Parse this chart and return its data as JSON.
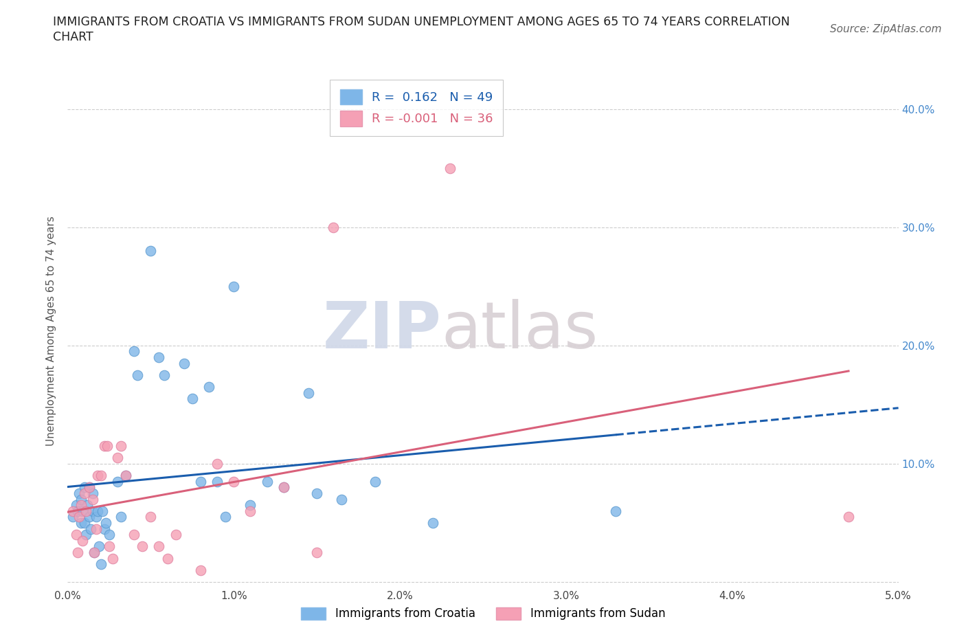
{
  "title_line1": "IMMIGRANTS FROM CROATIA VS IMMIGRANTS FROM SUDAN UNEMPLOYMENT AMONG AGES 65 TO 74 YEARS CORRELATION",
  "title_line2": "CHART",
  "source": "Source: ZipAtlas.com",
  "ylabel": "Unemployment Among Ages 65 to 74 years",
  "xlim": [
    0.0,
    0.05
  ],
  "ylim": [
    -0.005,
    0.43
  ],
  "xticks": [
    0.0,
    0.01,
    0.02,
    0.03,
    0.04,
    0.05
  ],
  "xticklabels": [
    "0.0%",
    "1.0%",
    "2.0%",
    "3.0%",
    "4.0%",
    "5.0%"
  ],
  "yticks": [
    0.0,
    0.1,
    0.2,
    0.3,
    0.4
  ],
  "right_yticklabels": [
    "",
    "10.0%",
    "20.0%",
    "30.0%",
    "40.0%"
  ],
  "croatia_color": "#7EB6E8",
  "sudan_color": "#F5A0B5",
  "croatia_R": 0.162,
  "croatia_N": 49,
  "sudan_R": -0.001,
  "sudan_N": 36,
  "croatia_line_color": "#1A5DAD",
  "sudan_line_color": "#D9607A",
  "watermark_zip": "ZIP",
  "watermark_atlas": "atlas",
  "background_color": "#ffffff",
  "grid_color": "#cccccc",
  "croatia_x": [
    0.0003,
    0.0005,
    0.0006,
    0.0007,
    0.0008,
    0.0008,
    0.0009,
    0.001,
    0.001,
    0.0011,
    0.0012,
    0.0013,
    0.0013,
    0.0014,
    0.0015,
    0.0015,
    0.0016,
    0.0017,
    0.0018,
    0.0019,
    0.002,
    0.0021,
    0.0022,
    0.0023,
    0.0025,
    0.003,
    0.0032,
    0.0035,
    0.004,
    0.0042,
    0.005,
    0.0055,
    0.0058,
    0.007,
    0.0075,
    0.008,
    0.0085,
    0.009,
    0.0095,
    0.01,
    0.011,
    0.012,
    0.013,
    0.0145,
    0.015,
    0.0165,
    0.0185,
    0.022,
    0.033
  ],
  "croatia_y": [
    0.055,
    0.065,
    0.06,
    0.075,
    0.07,
    0.05,
    0.06,
    0.08,
    0.05,
    0.04,
    0.065,
    0.08,
    0.055,
    0.045,
    0.075,
    0.06,
    0.025,
    0.055,
    0.06,
    0.03,
    0.015,
    0.06,
    0.045,
    0.05,
    0.04,
    0.085,
    0.055,
    0.09,
    0.195,
    0.175,
    0.28,
    0.19,
    0.175,
    0.185,
    0.155,
    0.085,
    0.165,
    0.085,
    0.055,
    0.25,
    0.065,
    0.085,
    0.08,
    0.16,
    0.075,
    0.07,
    0.085,
    0.05,
    0.06
  ],
  "sudan_x": [
    0.0003,
    0.0005,
    0.0006,
    0.0007,
    0.0008,
    0.0009,
    0.001,
    0.0011,
    0.0013,
    0.0015,
    0.0016,
    0.0017,
    0.0018,
    0.002,
    0.0022,
    0.0024,
    0.0025,
    0.0027,
    0.003,
    0.0032,
    0.0035,
    0.004,
    0.0045,
    0.005,
    0.0055,
    0.006,
    0.0065,
    0.008,
    0.009,
    0.01,
    0.011,
    0.013,
    0.015,
    0.016,
    0.023,
    0.047
  ],
  "sudan_y": [
    0.06,
    0.04,
    0.025,
    0.055,
    0.065,
    0.035,
    0.075,
    0.06,
    0.08,
    0.07,
    0.025,
    0.045,
    0.09,
    0.09,
    0.115,
    0.115,
    0.03,
    0.02,
    0.105,
    0.115,
    0.09,
    0.04,
    0.03,
    0.055,
    0.03,
    0.02,
    0.04,
    0.01,
    0.1,
    0.085,
    0.06,
    0.08,
    0.025,
    0.3,
    0.35,
    0.055
  ],
  "title_fontsize": 12.5,
  "source_fontsize": 11,
  "axis_label_fontsize": 11,
  "tick_fontsize": 11,
  "legend_fontsize": 13
}
